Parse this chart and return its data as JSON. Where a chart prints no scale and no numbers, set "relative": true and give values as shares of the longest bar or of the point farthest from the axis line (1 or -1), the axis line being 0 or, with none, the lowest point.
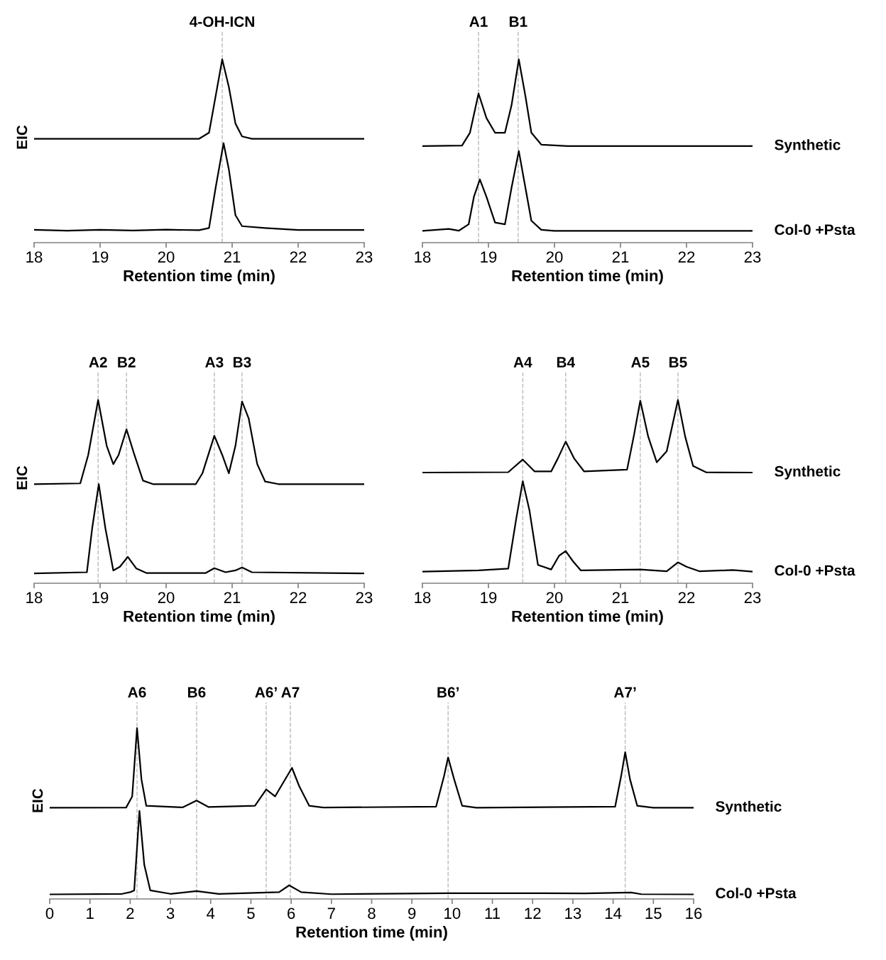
{
  "chart_data": [
    {
      "type": "line",
      "relative": true,
      "xlabel": "Retention time (min)",
      "ylabel": "EIC",
      "xlim": [
        18,
        23
      ],
      "xticks": [
        18,
        19,
        20,
        21,
        22,
        23
      ],
      "tick_labels": "x",
      "ref_lines": [
        {
          "axis": "x",
          "value": 20.85,
          "label": "4-OH-ICN",
          "color": "#bfbfbf",
          "line_style": "dashed"
        }
      ],
      "series": [
        {
          "color": "#000000",
          "x": [
            18,
            20.5,
            20.65,
            20.75,
            20.85,
            20.95,
            21.05,
            21.15,
            21.3,
            23
          ],
          "values": [
            0.567,
            0.567,
            0.6,
            0.8,
            1.0,
            0.85,
            0.65,
            0.58,
            0.567,
            0.567
          ]
        },
        {
          "color": "#000000",
          "x": [
            18,
            18.5,
            19,
            19.5,
            20,
            20.5,
            20.65,
            20.75,
            20.87,
            20.95,
            21.05,
            21.15,
            21.5,
            22,
            23
          ],
          "values": [
            0.07,
            0.065,
            0.07,
            0.066,
            0.071,
            0.068,
            0.08,
            0.3,
            0.543,
            0.4,
            0.15,
            0.09,
            0.08,
            0.069,
            0.069
          ]
        }
      ]
    },
    {
      "type": "line",
      "relative": true,
      "xlabel": "Retention time (min)",
      "xlim": [
        18,
        23
      ],
      "xticks": [
        18,
        19,
        20,
        21,
        22,
        23
      ],
      "tick_labels": "x",
      "ref_lines": [
        {
          "axis": "x",
          "value": 18.85,
          "label": "A1",
          "color": "#bfbfbf",
          "line_style": "dashed"
        },
        {
          "axis": "x",
          "value": 19.45,
          "label": "B1",
          "color": "#bfbfbf",
          "line_style": "dashed"
        }
      ],
      "series": [
        {
          "name": "Synthetic",
          "color": "#000000",
          "x": [
            18,
            18.6,
            18.72,
            18.85,
            18.97,
            19.1,
            19.25,
            19.35,
            19.46,
            19.56,
            19.65,
            19.8,
            20.2,
            23
          ],
          "values": [
            0.527,
            0.53,
            0.6,
            0.814,
            0.68,
            0.6,
            0.6,
            0.75,
            1.0,
            0.8,
            0.6,
            0.535,
            0.527,
            0.527
          ]
        },
        {
          "name": "Col-0 +Psta",
          "color": "#000000",
          "x": [
            18,
            18.4,
            18.55,
            18.7,
            18.78,
            18.87,
            18.97,
            19.1,
            19.25,
            19.35,
            19.46,
            19.56,
            19.65,
            19.8,
            20,
            23
          ],
          "values": [
            0.064,
            0.075,
            0.065,
            0.1,
            0.25,
            0.345,
            0.25,
            0.11,
            0.1,
            0.3,
            0.5,
            0.3,
            0.12,
            0.07,
            0.064,
            0.064
          ]
        }
      ]
    },
    {
      "type": "line",
      "relative": true,
      "xlabel": "Retention time (min)",
      "ylabel": "EIC",
      "xlim": [
        18,
        23
      ],
      "xticks": [
        18,
        19,
        20,
        21,
        22,
        23
      ],
      "tick_labels": "x",
      "ref_lines": [
        {
          "axis": "x",
          "value": 18.97,
          "label": "A2",
          "color": "#bfbfbf",
          "line_style": "dashed"
        },
        {
          "axis": "x",
          "value": 19.4,
          "label": "B2",
          "color": "#bfbfbf",
          "line_style": "dashed"
        },
        {
          "axis": "x",
          "value": 20.73,
          "label": "A3",
          "color": "#bfbfbf",
          "line_style": "dashed"
        },
        {
          "axis": "x",
          "value": 21.15,
          "label": "B3",
          "color": "#bfbfbf",
          "line_style": "dashed"
        }
      ],
      "series": [
        {
          "color": "#000000",
          "x": [
            18,
            18.7,
            18.82,
            18.97,
            19.1,
            19.2,
            19.28,
            19.4,
            19.52,
            19.65,
            19.8,
            20.45,
            20.55,
            20.73,
            20.85,
            20.95,
            21.05,
            21.15,
            21.25,
            21.38,
            21.5,
            21.7,
            23
          ],
          "values": [
            0.541,
            0.545,
            0.7,
            1.0,
            0.75,
            0.65,
            0.7,
            0.84,
            0.7,
            0.56,
            0.541,
            0.541,
            0.6,
            0.805,
            0.7,
            0.6,
            0.75,
            0.992,
            0.9,
            0.65,
            0.555,
            0.541,
            0.541
          ]
        },
        {
          "color": "#000000",
          "x": [
            18,
            18.8,
            18.88,
            18.98,
            19.08,
            19.2,
            19.3,
            19.42,
            19.55,
            19.7,
            20.6,
            20.73,
            20.9,
            21.05,
            21.15,
            21.3,
            23
          ],
          "values": [
            0.054,
            0.06,
            0.3,
            0.541,
            0.3,
            0.07,
            0.09,
            0.144,
            0.08,
            0.056,
            0.056,
            0.082,
            0.06,
            0.07,
            0.086,
            0.06,
            0.054
          ]
        }
      ]
    },
    {
      "type": "line",
      "relative": true,
      "xlabel": "Retention time (min)",
      "xlim": [
        18,
        23
      ],
      "xticks": [
        18,
        19,
        20,
        21,
        22,
        23
      ],
      "tick_labels": "x",
      "ref_lines": [
        {
          "axis": "x",
          "value": 19.52,
          "label": "A4",
          "color": "#bfbfbf",
          "line_style": "dashed"
        },
        {
          "axis": "x",
          "value": 20.17,
          "label": "B4",
          "color": "#bfbfbf",
          "line_style": "dashed"
        },
        {
          "axis": "x",
          "value": 21.3,
          "label": "A5",
          "color": "#bfbfbf",
          "line_style": "dashed"
        },
        {
          "axis": "x",
          "value": 21.87,
          "label": "B5",
          "color": "#bfbfbf",
          "line_style": "dashed"
        }
      ],
      "series": [
        {
          "name": "Synthetic",
          "color": "#000000",
          "x": [
            18,
            19.3,
            19.52,
            19.7,
            19.95,
            20.05,
            20.17,
            20.3,
            20.45,
            21.1,
            21.2,
            21.3,
            21.42,
            21.55,
            21.7,
            21.87,
            21.98,
            22.1,
            22.3,
            23
          ],
          "values": [
            0.604,
            0.606,
            0.675,
            0.61,
            0.61,
            0.68,
            0.773,
            0.68,
            0.61,
            0.62,
            0.8,
            0.996,
            0.8,
            0.66,
            0.72,
            1.0,
            0.8,
            0.64,
            0.605,
            0.604
          ]
        },
        {
          "name": "Col-0 +Psta",
          "color": "#000000",
          "x": [
            18,
            18.85,
            19.3,
            19.42,
            19.52,
            19.62,
            19.75,
            19.95,
            20.07,
            20.17,
            20.28,
            20.4,
            21.3,
            21.7,
            21.87,
            22.0,
            22.2,
            22.7,
            23
          ],
          "values": [
            0.063,
            0.07,
            0.08,
            0.35,
            0.557,
            0.4,
            0.1,
            0.075,
            0.15,
            0.176,
            0.12,
            0.07,
            0.075,
            0.065,
            0.114,
            0.09,
            0.065,
            0.072,
            0.063
          ]
        }
      ]
    },
    {
      "type": "line",
      "relative": true,
      "xlabel": "Retention time (min)",
      "ylabel": "EIC",
      "xlim": [
        0,
        16
      ],
      "xticks": [
        0,
        1,
        2,
        3,
        4,
        5,
        6,
        7,
        8,
        9,
        10,
        11,
        12,
        13,
        14,
        15,
        16
      ],
      "tick_labels": "x",
      "ref_lines": [
        {
          "axis": "x",
          "value": 2.17,
          "label": "A6",
          "color": "#bfbfbf",
          "line_style": "dashed"
        },
        {
          "axis": "x",
          "value": 3.65,
          "label": "B6",
          "color": "#bfbfbf",
          "line_style": "dashed"
        },
        {
          "axis": "x",
          "value": 5.38,
          "label": "A6’",
          "color": "#bfbfbf",
          "line_style": "dashed"
        },
        {
          "axis": "x",
          "value": 5.98,
          "label": "A7",
          "color": "#bfbfbf",
          "line_style": "dashed"
        },
        {
          "axis": "x",
          "value": 9.9,
          "label": "B6’",
          "color": "#bfbfbf",
          "line_style": "dashed"
        },
        {
          "axis": "x",
          "value": 14.3,
          "label": "A7’",
          "color": "#bfbfbf",
          "line_style": "dashed"
        }
      ],
      "series": [
        {
          "name": "Synthetic",
          "color": "#000000",
          "x": [
            0,
            1.9,
            2.05,
            2.17,
            2.28,
            2.4,
            3.3,
            3.65,
            3.95,
            5.1,
            5.38,
            5.6,
            5.8,
            6.02,
            6.2,
            6.45,
            6.8,
            9.6,
            9.8,
            9.9,
            10.05,
            10.25,
            10.6,
            14.05,
            14.2,
            14.3,
            14.42,
            14.6,
            15,
            16
          ],
          "values": [
            0.534,
            0.535,
            0.6,
            1.0,
            0.7,
            0.545,
            0.536,
            0.576,
            0.538,
            0.545,
            0.641,
            0.6,
            0.68,
            0.767,
            0.66,
            0.545,
            0.535,
            0.54,
            0.72,
            0.828,
            0.7,
            0.545,
            0.534,
            0.54,
            0.72,
            0.859,
            0.7,
            0.545,
            0.534,
            0.534
          ]
        },
        {
          "name": "Col-0 +Psta",
          "color": "#000000",
          "x": [
            0,
            1.8,
            2.0,
            2.1,
            2.23,
            2.35,
            2.5,
            3.0,
            3.65,
            4.2,
            5.7,
            5.95,
            6.25,
            7,
            9.9,
            13.3,
            14.45,
            14.7,
            16
          ],
          "values": [
            0.027,
            0.03,
            0.04,
            0.05,
            0.515,
            0.2,
            0.05,
            0.03,
            0.046,
            0.03,
            0.04,
            0.08,
            0.04,
            0.028,
            0.034,
            0.033,
            0.038,
            0.028,
            0.027
          ]
        }
      ]
    }
  ]
}
